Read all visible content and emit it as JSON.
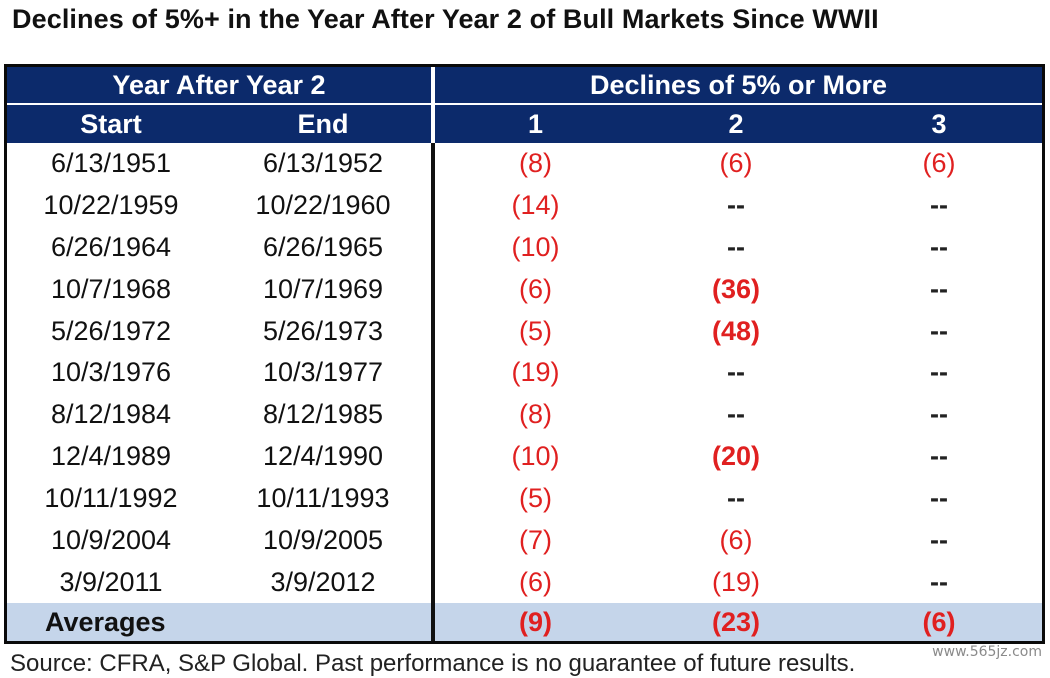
{
  "title": "Declines of 5%+ in the Year After Year 2 of Bull Markets Since WWII",
  "source": "Source: CFRA, S&P Global. Past performance is no guarantee of future results.",
  "watermark": "www.565jz.com",
  "colors": {
    "header_bg": "#0c2a6b",
    "header_text": "#ffffff",
    "negative": "#e02020",
    "average_bg": "#c5d5ea"
  },
  "chart_data": {
    "type": "table",
    "title": "Declines of 5%+ in the Year After Year 2 of Bull Markets Since WWII",
    "group_headers": [
      "Year After Year 2",
      "Declines of 5% or More"
    ],
    "columns": [
      "Start",
      "End",
      "1",
      "2",
      "3"
    ],
    "rows": [
      {
        "start": "6/13/1951",
        "end": "6/13/1952",
        "d1": "(8)",
        "d2": "(6)",
        "d3": "(6)",
        "bold": [
          false,
          false,
          false
        ]
      },
      {
        "start": "10/22/1959",
        "end": "10/22/1960",
        "d1": "(14)",
        "d2": "--",
        "d3": "--",
        "bold": [
          false,
          false,
          false
        ]
      },
      {
        "start": "6/26/1964",
        "end": "6/26/1965",
        "d1": "(10)",
        "d2": "--",
        "d3": "--",
        "bold": [
          false,
          false,
          false
        ]
      },
      {
        "start": "10/7/1968",
        "end": "10/7/1969",
        "d1": "(6)",
        "d2": "(36)",
        "d3": "--",
        "bold": [
          false,
          true,
          false
        ]
      },
      {
        "start": "5/26/1972",
        "end": "5/26/1973",
        "d1": "(5)",
        "d2": "(48)",
        "d3": "--",
        "bold": [
          false,
          true,
          false
        ]
      },
      {
        "start": "10/3/1976",
        "end": "10/3/1977",
        "d1": "(19)",
        "d2": "--",
        "d3": "--",
        "bold": [
          false,
          false,
          false
        ]
      },
      {
        "start": "8/12/1984",
        "end": "8/12/1985",
        "d1": "(8)",
        "d2": "--",
        "d3": "--",
        "bold": [
          false,
          false,
          false
        ]
      },
      {
        "start": "12/4/1989",
        "end": "12/4/1990",
        "d1": "(10)",
        "d2": "(20)",
        "d3": "--",
        "bold": [
          false,
          true,
          false
        ]
      },
      {
        "start": "10/11/1992",
        "end": "10/11/1993",
        "d1": "(5)",
        "d2": "--",
        "d3": "--",
        "bold": [
          false,
          false,
          false
        ]
      },
      {
        "start": "10/9/2004",
        "end": "10/9/2005",
        "d1": "(7)",
        "d2": "(6)",
        "d3": "--",
        "bold": [
          false,
          false,
          false
        ]
      },
      {
        "start": "3/9/2011",
        "end": "3/9/2012",
        "d1": "(6)",
        "d2": "(19)",
        "d3": "--",
        "bold": [
          false,
          false,
          false
        ]
      }
    ],
    "averages": {
      "label": "Averages",
      "d1": "(9)",
      "d2": "(23)",
      "d3": "(6)"
    }
  }
}
